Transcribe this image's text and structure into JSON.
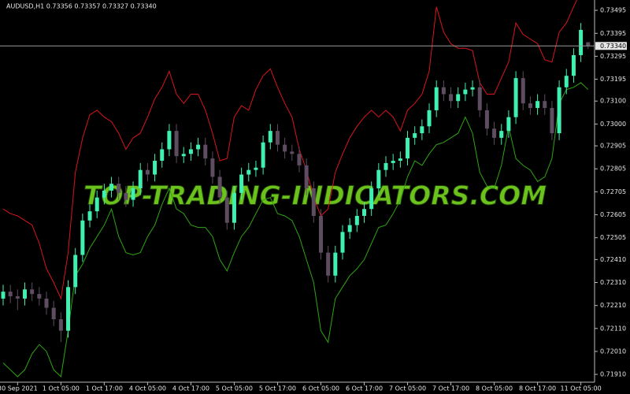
{
  "chart_data": {
    "type": "candlestick",
    "title": "AUDUSD,H1  0.73356 0.73357 0.73327 0.73340",
    "watermark": "TOP-TRADING-INDICATORS.COM",
    "up_color": "#3ff0b0",
    "down_color": "#5e4c60",
    "grid": false,
    "ylim": [
      0.71876,
      0.7354
    ],
    "yticks": [
      0.73495,
      0.73395,
      0.73295,
      0.73195,
      {
        "value": 0.731,
        "label": "0.73100"
      },
      {
        "value": 0.73,
        "label": "0.73000"
      },
      0.72905,
      0.72805,
      0.72705,
      0.72605,
      0.72505,
      {
        "value": 0.7241,
        "label": "0.72410"
      },
      {
        "value": 0.7231,
        "label": "0.72310"
      },
      {
        "value": 0.7221,
        "label": "0.72210"
      },
      {
        "value": 0.7211,
        "label": "0.72110"
      },
      {
        "value": 0.7201,
        "label": "0.72010"
      },
      {
        "value": 0.7191,
        "label": "0.71910"
      }
    ],
    "current_price": {
      "value": 0.7334,
      "label": "0.73340"
    },
    "categories": [
      null,
      null,
      "30 Sep 2021",
      null,
      null,
      null,
      null,
      null,
      "1 Oct 05:00",
      null,
      null,
      null,
      null,
      null,
      "1 Oct 17:00",
      null,
      null,
      null,
      null,
      null,
      "4 Oct 05:00",
      null,
      null,
      null,
      null,
      null,
      "4 Oct 17:00",
      null,
      null,
      null,
      null,
      null,
      "5 Oct 05:00",
      null,
      null,
      null,
      null,
      null,
      "5 Oct 17:00",
      null,
      null,
      null,
      null,
      null,
      "6 Oct 05:00",
      null,
      null,
      null,
      null,
      null,
      "6 Oct 17:00",
      null,
      null,
      null,
      null,
      null,
      "7 Oct 05:00",
      null,
      null,
      null,
      null,
      null,
      "7 Oct 17:00",
      null,
      null,
      null,
      null,
      null,
      "8 Oct 05:00",
      null,
      null,
      null,
      null,
      null,
      "8 Oct 17:00",
      null,
      null,
      null,
      null,
      null,
      "11 Oct 05:00",
      null
    ],
    "candles": [
      [
        0.7224,
        0.723,
        0.7221,
        0.7227
      ],
      [
        0.7227,
        0.723,
        0.7222,
        0.7225
      ],
      [
        0.7225,
        0.7228,
        0.7219,
        0.7224
      ],
      [
        0.7224,
        0.7231,
        0.7221,
        0.7228
      ],
      [
        0.7228,
        0.7231,
        0.7223,
        0.7226
      ],
      [
        0.7226,
        0.7229,
        0.7221,
        0.7224
      ],
      [
        0.7224,
        0.7227,
        0.7217,
        0.722
      ],
      [
        0.722,
        0.7223,
        0.7212,
        0.7215
      ],
      [
        0.7215,
        0.7218,
        0.7205,
        0.721
      ],
      [
        0.721,
        0.7232,
        0.7207,
        0.7229
      ],
      [
        0.7229,
        0.7246,
        0.7226,
        0.7243
      ],
      [
        0.7243,
        0.7261,
        0.724,
        0.7258
      ],
      [
        0.7258,
        0.7265,
        0.7255,
        0.7262
      ],
      [
        0.7262,
        0.7271,
        0.7259,
        0.7268
      ],
      [
        0.7268,
        0.7274,
        0.7265,
        0.7271
      ],
      [
        0.7271,
        0.7277,
        0.7268,
        0.7274
      ],
      [
        0.7274,
        0.7277,
        0.7267,
        0.727
      ],
      [
        0.727,
        0.7273,
        0.7264,
        0.7267
      ],
      [
        0.7267,
        0.7275,
        0.7264,
        0.7272
      ],
      [
        0.7272,
        0.7283,
        0.7269,
        0.728
      ],
      [
        0.728,
        0.7283,
        0.7275,
        0.7278
      ],
      [
        0.7278,
        0.7287,
        0.7275,
        0.7284
      ],
      [
        0.7284,
        0.7292,
        0.7281,
        0.7289
      ],
      [
        0.7289,
        0.73,
        0.7286,
        0.7297
      ],
      [
        0.7297,
        0.73,
        0.7283,
        0.7286
      ],
      [
        0.7286,
        0.729,
        0.7283,
        0.7287
      ],
      [
        0.7287,
        0.7292,
        0.7284,
        0.7289
      ],
      [
        0.7289,
        0.7294,
        0.7286,
        0.7291
      ],
      [
        0.7291,
        0.7294,
        0.7282,
        0.7285
      ],
      [
        0.7285,
        0.7288,
        0.7274,
        0.7277
      ],
      [
        0.7277,
        0.728,
        0.7265,
        0.7268
      ],
      [
        0.7268,
        0.7271,
        0.7254,
        0.7257
      ],
      [
        0.7257,
        0.7273,
        0.7254,
        0.727
      ],
      [
        0.727,
        0.7281,
        0.7267,
        0.7278
      ],
      [
        0.7278,
        0.7283,
        0.7275,
        0.728
      ],
      [
        0.728,
        0.7284,
        0.7277,
        0.7281
      ],
      [
        0.7281,
        0.7295,
        0.7278,
        0.7292
      ],
      [
        0.7292,
        0.73,
        0.7289,
        0.7297
      ],
      [
        0.7297,
        0.73,
        0.7288,
        0.7291
      ],
      [
        0.7291,
        0.7294,
        0.7285,
        0.7288
      ],
      [
        0.7288,
        0.7291,
        0.7284,
        0.7287
      ],
      [
        0.7287,
        0.729,
        0.7279,
        0.7282
      ],
      [
        0.7282,
        0.7285,
        0.7269,
        0.7272
      ],
      [
        0.7272,
        0.7275,
        0.7257,
        0.726
      ],
      [
        0.726,
        0.7263,
        0.7241,
        0.7244
      ],
      [
        0.7244,
        0.7247,
        0.7231,
        0.7234
      ],
      [
        0.7234,
        0.7247,
        0.7231,
        0.7244
      ],
      [
        0.7244,
        0.7256,
        0.7241,
        0.7253
      ],
      [
        0.7253,
        0.7259,
        0.725,
        0.7256
      ],
      [
        0.7256,
        0.7263,
        0.7253,
        0.726
      ],
      [
        0.726,
        0.7266,
        0.7257,
        0.7263
      ],
      [
        0.7263,
        0.7275,
        0.726,
        0.7272
      ],
      [
        0.7272,
        0.7283,
        0.7269,
        0.728
      ],
      [
        0.728,
        0.7286,
        0.7277,
        0.7283
      ],
      [
        0.7283,
        0.7287,
        0.728,
        0.7284
      ],
      [
        0.7284,
        0.7288,
        0.7281,
        0.7285
      ],
      [
        0.7285,
        0.7297,
        0.7282,
        0.7294
      ],
      [
        0.7294,
        0.7299,
        0.7291,
        0.7296
      ],
      [
        0.7296,
        0.7302,
        0.7293,
        0.7299
      ],
      [
        0.7299,
        0.7309,
        0.7296,
        0.7306
      ],
      [
        0.7306,
        0.7319,
        0.7303,
        0.7316
      ],
      [
        0.7316,
        0.7319,
        0.731,
        0.7313
      ],
      [
        0.7313,
        0.7316,
        0.7307,
        0.731
      ],
      [
        0.731,
        0.7316,
        0.7307,
        0.7313
      ],
      [
        0.7313,
        0.7318,
        0.731,
        0.7315
      ],
      [
        0.7315,
        0.7319,
        0.7312,
        0.7316
      ],
      [
        0.7316,
        0.7319,
        0.7303,
        0.7306
      ],
      [
        0.7306,
        0.7309,
        0.7295,
        0.7298
      ],
      [
        0.7298,
        0.7301,
        0.7291,
        0.7294
      ],
      [
        0.7294,
        0.73,
        0.7291,
        0.7297
      ],
      [
        0.7297,
        0.7306,
        0.7294,
        0.7303
      ],
      [
        0.7303,
        0.7323,
        0.73,
        0.732
      ],
      [
        0.732,
        0.7323,
        0.7306,
        0.7309
      ],
      [
        0.7309,
        0.7312,
        0.7304,
        0.7307
      ],
      [
        0.7307,
        0.7313,
        0.7304,
        0.731
      ],
      [
        0.731,
        0.7313,
        0.7304,
        0.7307
      ],
      [
        0.7307,
        0.731,
        0.7293,
        0.7296
      ],
      [
        0.7296,
        0.7319,
        0.7293,
        0.7316
      ],
      [
        0.7316,
        0.7324,
        0.7313,
        0.7321
      ],
      [
        0.7321,
        0.7333,
        0.7318,
        0.733
      ],
      [
        0.733,
        0.7344,
        0.7327,
        0.7341
      ],
      [
        0.73356,
        0.73357,
        0.73327,
        0.7334
      ]
    ],
    "series": [
      {
        "color": "#d8161b",
        "values": [
          0.7263,
          0.7261,
          0.726,
          0.7258,
          0.7256,
          0.7248,
          0.7237,
          0.7231,
          0.7224,
          0.7244,
          0.7279,
          0.7294,
          0.7304,
          0.7306,
          0.7303,
          0.7301,
          0.7296,
          0.7289,
          0.7294,
          0.7296,
          0.7303,
          0.7311,
          0.7316,
          0.7323,
          0.7313,
          0.7309,
          0.7313,
          0.7313,
          0.7306,
          0.7296,
          0.7284,
          0.7285,
          0.7303,
          0.7308,
          0.7306,
          0.7315,
          0.7321,
          0.7324,
          0.7316,
          0.7309,
          0.7303,
          0.7289,
          0.728,
          0.7268,
          0.726,
          0.7263,
          0.7279,
          0.7287,
          0.7294,
          0.7299,
          0.7303,
          0.7306,
          0.7303,
          0.7306,
          0.7303,
          0.7297,
          0.7306,
          0.7309,
          0.7313,
          0.7323,
          0.7351,
          0.734,
          0.7335,
          0.7333,
          0.7333,
          0.7332,
          0.7318,
          0.7313,
          0.7313,
          0.732,
          0.7327,
          0.7344,
          0.7339,
          0.7337,
          0.7335,
          0.7328,
          0.7327,
          0.734,
          0.7344,
          0.7351,
          0.7358,
          0.7359
        ]
      },
      {
        "color": "#2fa512",
        "values": [
          0.7196,
          0.7193,
          0.719,
          0.7193,
          0.72,
          0.7204,
          0.7201,
          0.7193,
          0.719,
          0.721,
          0.7234,
          0.7239,
          0.7246,
          0.7251,
          0.7256,
          0.7263,
          0.7251,
          0.7244,
          0.7243,
          0.7244,
          0.7251,
          0.7256,
          0.7265,
          0.7272,
          0.7263,
          0.7261,
          0.7256,
          0.7255,
          0.7255,
          0.7251,
          0.7241,
          0.7236,
          0.7244,
          0.7251,
          0.7255,
          0.7261,
          0.7267,
          0.7268,
          0.7261,
          0.726,
          0.7258,
          0.7251,
          0.7241,
          0.7231,
          0.721,
          0.7205,
          0.7224,
          0.7229,
          0.7234,
          0.7237,
          0.7241,
          0.7248,
          0.7255,
          0.7256,
          0.7261,
          0.7267,
          0.7277,
          0.7284,
          0.7282,
          0.7287,
          0.7291,
          0.7292,
          0.7294,
          0.7296,
          0.7303,
          0.7296,
          0.7279,
          0.7273,
          0.7272,
          0.7282,
          0.7299,
          0.7285,
          0.7282,
          0.728,
          0.7275,
          0.7277,
          0.7285,
          0.7309,
          0.7315,
          0.7316,
          0.7318,
          0.7315
        ]
      }
    ]
  }
}
